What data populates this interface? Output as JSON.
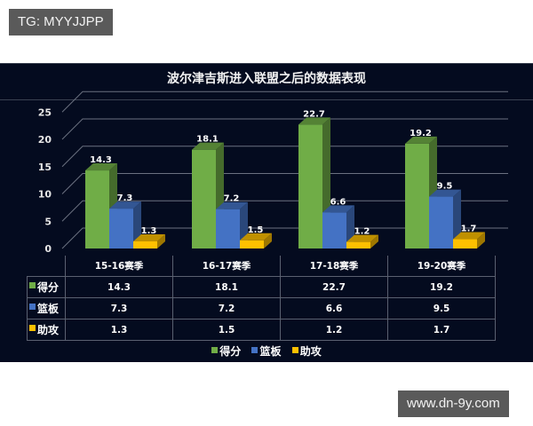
{
  "watermarks": {
    "top": "TG: MYYJJPP",
    "bottom": "www.dn-9y.com"
  },
  "colors": {
    "points": "#70ad47",
    "rebounds": "#4472c4",
    "assists": "#ffc000",
    "background": "#040b1f"
  },
  "chart_data": {
    "type": "bar",
    "title": "波尔津吉斯进入联盟之后的数据表现",
    "categories": [
      "15-16赛季",
      "16-17赛季",
      "17-18赛季",
      "19-20赛季"
    ],
    "series": [
      {
        "name": "得分",
        "values": [
          14.3,
          18.1,
          22.7,
          19.2
        ]
      },
      {
        "name": "篮板",
        "values": [
          7.3,
          7.2,
          6.6,
          9.5
        ]
      },
      {
        "name": "助攻",
        "values": [
          1.3,
          1.5,
          1.2,
          1.7
        ]
      }
    ],
    "yticks": [
      "0",
      "5",
      "10",
      "15",
      "20",
      "25"
    ],
    "ylim": [
      0,
      25
    ],
    "xlabel": "",
    "ylabel": "",
    "grid": true,
    "legend_position": "bottom",
    "has_data_table": true,
    "style": "3d clustered column"
  },
  "table": {
    "headers": [
      "15-16赛季",
      "16-17赛季",
      "17-18赛季",
      "19-20赛季"
    ],
    "rows": [
      {
        "label": "得分",
        "values": [
          "14.3",
          "18.1",
          "22.7",
          "19.2"
        ]
      },
      {
        "label": "篮板",
        "values": [
          "7.3",
          "7.2",
          "6.6",
          "9.5"
        ]
      },
      {
        "label": "助攻",
        "values": [
          "1.3",
          "1.5",
          "1.2",
          "1.7"
        ]
      }
    ]
  },
  "legend": [
    "得分",
    "篮板",
    "助攻"
  ]
}
